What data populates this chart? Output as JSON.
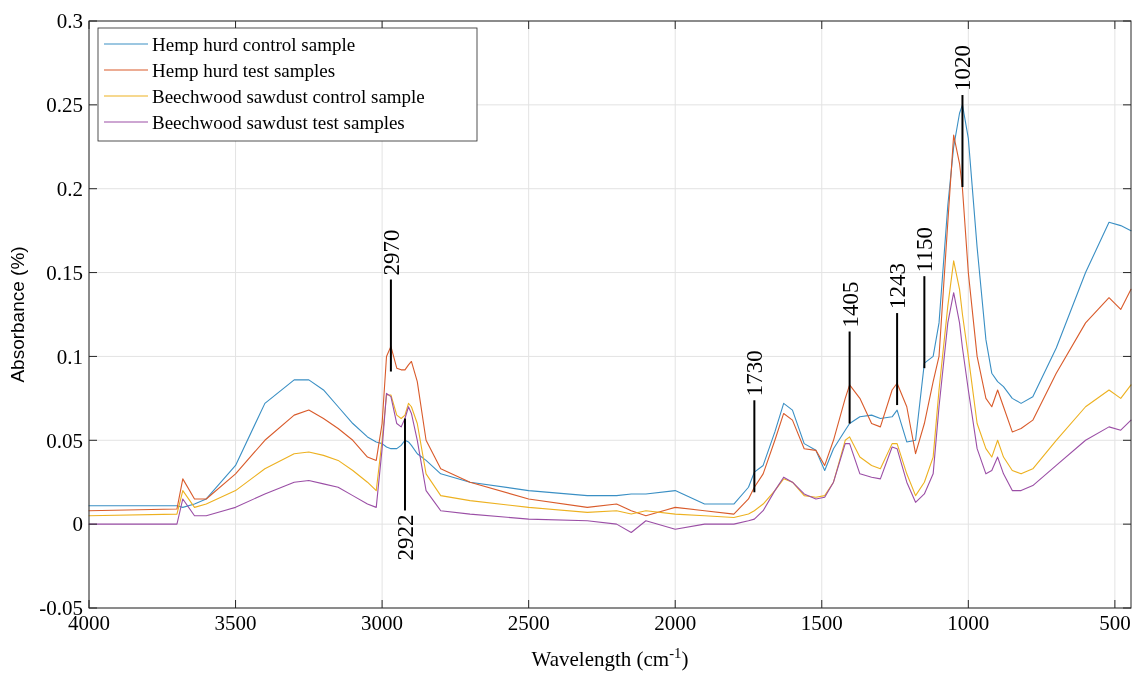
{
  "chart_data": {
    "type": "line",
    "xlabel": "Wavelength  (cm$^{-1}$)",
    "ylabel": "Absorbance (%)",
    "xlim": [
      4000,
      445
    ],
    "xticks": [
      4000,
      3500,
      3000,
      2500,
      2000,
      1500,
      1000,
      500
    ],
    "ylim": [
      -0.05,
      0.3
    ],
    "yticks": [
      -0.05,
      0,
      0.05,
      0.1,
      0.15,
      0.2,
      0.25,
      0.3
    ],
    "grid": true,
    "legend": "top left",
    "marker": "none",
    "line_style": "solid",
    "x": [
      4000,
      3700,
      3680,
      3640,
      3600,
      3500,
      3400,
      3300,
      3250,
      3200,
      3150,
      3100,
      3050,
      3020,
      3000,
      2985,
      2970,
      2950,
      2935,
      2922,
      2910,
      2900,
      2880,
      2850,
      2800,
      2700,
      2500,
      2300,
      2200,
      2150,
      2100,
      2000,
      1900,
      1800,
      1750,
      1730,
      1700,
      1660,
      1630,
      1600,
      1560,
      1520,
      1490,
      1460,
      1420,
      1405,
      1370,
      1330,
      1300,
      1260,
      1243,
      1210,
      1180,
      1150,
      1120,
      1100,
      1070,
      1050,
      1030,
      1020,
      1000,
      970,
      940,
      920,
      900,
      880,
      850,
      820,
      780,
      700,
      600,
      520,
      480,
      445
    ],
    "series": [
      {
        "name": "Hemp hurd control sample",
        "color": "#3a8fc4",
        "values": [
          0.011,
          0.011,
          0.01,
          0.012,
          0.015,
          0.035,
          0.072,
          0.086,
          0.086,
          0.08,
          0.07,
          0.06,
          0.052,
          0.049,
          0.048,
          0.046,
          0.045,
          0.045,
          0.047,
          0.05,
          0.049,
          0.047,
          0.042,
          0.038,
          0.03,
          0.025,
          0.02,
          0.017,
          0.017,
          0.018,
          0.018,
          0.02,
          0.012,
          0.012,
          0.022,
          0.031,
          0.035,
          0.055,
          0.072,
          0.068,
          0.048,
          0.044,
          0.032,
          0.045,
          0.056,
          0.06,
          0.064,
          0.065,
          0.063,
          0.064,
          0.068,
          0.049,
          0.05,
          0.096,
          0.1,
          0.12,
          0.19,
          0.225,
          0.245,
          0.25,
          0.23,
          0.165,
          0.11,
          0.09,
          0.085,
          0.082,
          0.075,
          0.072,
          0.076,
          0.105,
          0.15,
          0.18,
          0.178,
          0.175
        ]
      },
      {
        "name": "Hemp hurd test samples",
        "color": "#d95b2b",
        "values": [
          0.008,
          0.009,
          0.027,
          0.015,
          0.015,
          0.03,
          0.05,
          0.065,
          0.068,
          0.063,
          0.057,
          0.05,
          0.04,
          0.038,
          0.06,
          0.1,
          0.106,
          0.093,
          0.092,
          0.092,
          0.095,
          0.097,
          0.085,
          0.05,
          0.033,
          0.025,
          0.015,
          0.01,
          0.012,
          0.008,
          0.005,
          0.01,
          0.008,
          0.006,
          0.015,
          0.022,
          0.03,
          0.05,
          0.066,
          0.062,
          0.045,
          0.044,
          0.035,
          0.05,
          0.075,
          0.083,
          0.075,
          0.06,
          0.058,
          0.08,
          0.084,
          0.07,
          0.042,
          0.06,
          0.085,
          0.1,
          0.18,
          0.232,
          0.215,
          0.2,
          0.15,
          0.1,
          0.075,
          0.07,
          0.08,
          0.07,
          0.055,
          0.057,
          0.062,
          0.09,
          0.12,
          0.135,
          0.128,
          0.14
        ]
      },
      {
        "name": "Beechwood sawdust control sample",
        "color": "#edb120",
        "values": [
          0.005,
          0.006,
          0.02,
          0.01,
          0.012,
          0.02,
          0.033,
          0.042,
          0.043,
          0.041,
          0.038,
          0.032,
          0.025,
          0.02,
          0.05,
          0.077,
          0.077,
          0.065,
          0.063,
          0.065,
          0.072,
          0.07,
          0.06,
          0.03,
          0.017,
          0.014,
          0.01,
          0.007,
          0.008,
          0.006,
          0.008,
          0.006,
          0.005,
          0.004,
          0.006,
          0.008,
          0.012,
          0.02,
          0.027,
          0.025,
          0.017,
          0.016,
          0.017,
          0.025,
          0.05,
          0.052,
          0.04,
          0.035,
          0.033,
          0.048,
          0.048,
          0.03,
          0.017,
          0.025,
          0.04,
          0.08,
          0.13,
          0.157,
          0.14,
          0.125,
          0.1,
          0.06,
          0.045,
          0.04,
          0.05,
          0.04,
          0.032,
          0.03,
          0.033,
          0.05,
          0.07,
          0.08,
          0.075,
          0.083
        ]
      },
      {
        "name": "Beechwood sawdust test samples",
        "color": "#9b4fa6",
        "values": [
          0.0,
          0.0,
          0.015,
          0.005,
          0.005,
          0.01,
          0.018,
          0.025,
          0.026,
          0.024,
          0.022,
          0.017,
          0.012,
          0.01,
          0.045,
          0.078,
          0.076,
          0.06,
          0.058,
          0.063,
          0.07,
          0.066,
          0.05,
          0.02,
          0.008,
          0.006,
          0.003,
          0.002,
          0.0,
          -0.005,
          0.002,
          -0.003,
          0.0,
          0.0,
          0.002,
          0.003,
          0.008,
          0.02,
          0.028,
          0.025,
          0.018,
          0.015,
          0.016,
          0.025,
          0.048,
          0.048,
          0.03,
          0.028,
          0.027,
          0.046,
          0.045,
          0.025,
          0.013,
          0.018,
          0.03,
          0.07,
          0.12,
          0.138,
          0.12,
          0.105,
          0.08,
          0.045,
          0.03,
          0.032,
          0.04,
          0.03,
          0.02,
          0.02,
          0.023,
          0.035,
          0.05,
          0.058,
          0.056,
          0.062
        ]
      }
    ],
    "annotations": [
      {
        "text": "2970",
        "x": 2970,
        "y": 0.091
      },
      {
        "text": "2922",
        "x": 2922,
        "y": 0.063
      },
      {
        "text": "1730",
        "x": 1730,
        "y": 0.019
      },
      {
        "text": "1405",
        "x": 1405,
        "y": 0.06
      },
      {
        "text": "1243",
        "x": 1243,
        "y": 0.071
      },
      {
        "text": "1150",
        "x": 1150,
        "y": 0.093
      },
      {
        "text": "1020",
        "x": 1020,
        "y": 0.201
      }
    ]
  }
}
